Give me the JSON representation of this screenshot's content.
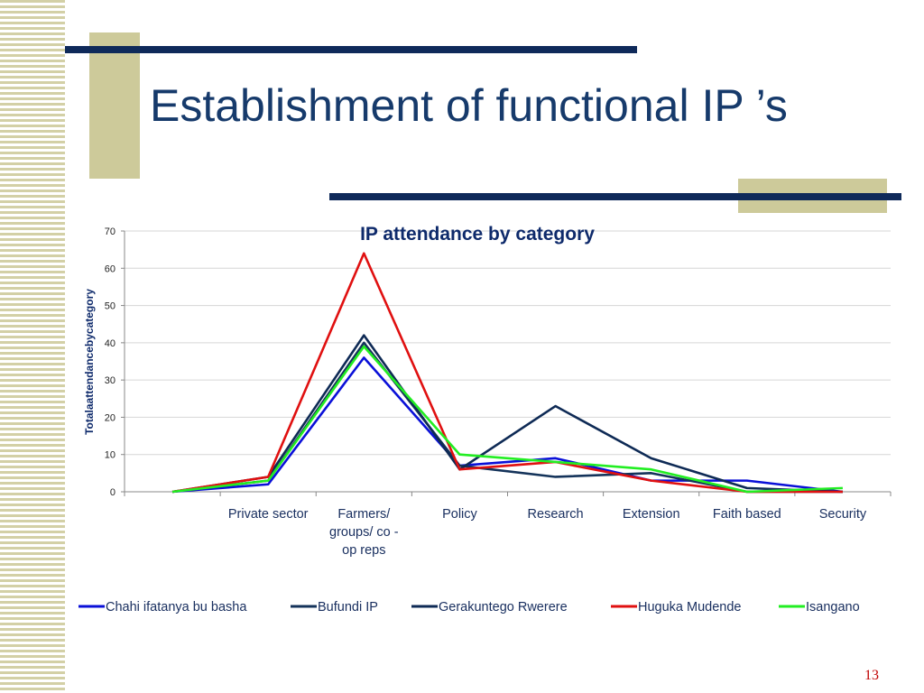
{
  "slide": {
    "title": "Establishment of functional IP ’s",
    "number": "13"
  },
  "colors": {
    "title": "#163a6b",
    "accent_bar": "#0f2a5a",
    "deco_tan": "#cdca9a",
    "slide_number": "#c00000"
  },
  "chart_data": {
    "type": "line",
    "title": "IP attendance by category",
    "xlabel": "",
    "ylabel": "Totalaattendancebycategory",
    "ylim": [
      0,
      70
    ],
    "yticks": [
      0,
      10,
      20,
      30,
      40,
      50,
      60,
      70
    ],
    "categories": [
      "",
      "Private sector",
      "Farmers/ groups/ co - op reps",
      "Policy",
      "Research",
      "Extension",
      "Faith based",
      "Security"
    ],
    "category_lines": [
      [
        ""
      ],
      [
        "Private sector"
      ],
      [
        "Farmers/",
        "groups/ co -",
        "op reps"
      ],
      [
        "Policy"
      ],
      [
        "Research"
      ],
      [
        "Extension"
      ],
      [
        "Faith based"
      ],
      [
        "Security"
      ]
    ],
    "grid": true,
    "legend_position": "bottom",
    "series": [
      {
        "name": "Chahi ifatanya bu basha",
        "color": "#0a10d8",
        "values": [
          0,
          2,
          36,
          7,
          9,
          3,
          3,
          0
        ]
      },
      {
        "name": "Bufundi IP",
        "color": "#14335a",
        "values": [
          0,
          3,
          40,
          7,
          4,
          5,
          0,
          0
        ]
      },
      {
        "name": "Gerakuntego Rwerere",
        "color": "#0e2a55",
        "values": [
          0,
          4,
          42,
          6,
          23,
          9,
          1,
          0
        ]
      },
      {
        "name": "Huguka Mudende",
        "color": "#e01010",
        "values": [
          0,
          4,
          64,
          6,
          8,
          3,
          0,
          0
        ]
      },
      {
        "name": "Isangano",
        "color": "#22ee22",
        "values": [
          0,
          3,
          39,
          10,
          8,
          6,
          0,
          1
        ]
      }
    ]
  }
}
